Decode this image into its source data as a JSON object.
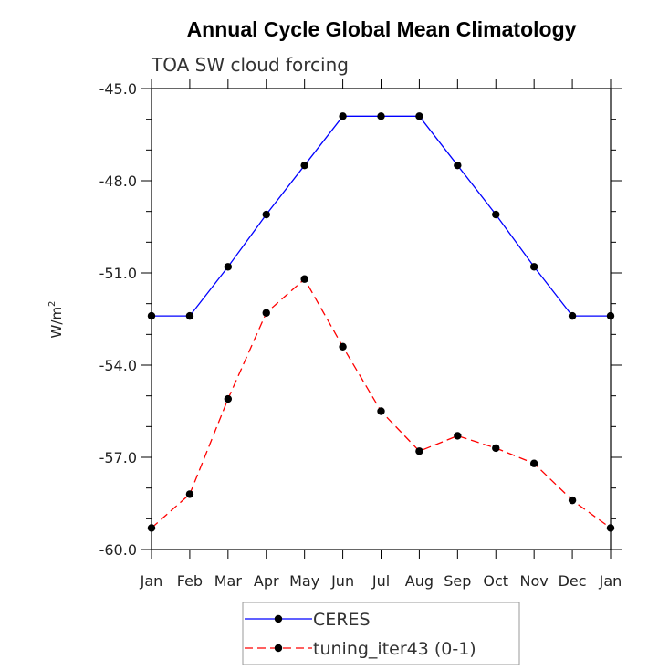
{
  "chart_data": {
    "type": "line",
    "title": "Annual Cycle Global Mean Climatology",
    "subtitle": "TOA SW cloud forcing",
    "ylabel": "W/m",
    "ylabel_sup": "2",
    "xlabel": "",
    "ylim": [
      -60.0,
      -45.0
    ],
    "yticks": [
      "-45.0",
      "-48.0",
      "-51.0",
      "-54.0",
      "-57.0",
      "-60.0"
    ],
    "ytick_values": [
      -45,
      -48,
      -51,
      -54,
      -57,
      -60
    ],
    "categories": [
      "Jan",
      "Feb",
      "Mar",
      "Apr",
      "May",
      "Jun",
      "Jul",
      "Aug",
      "Sep",
      "Oct",
      "Nov",
      "Dec",
      "Jan"
    ],
    "grid": false,
    "legend_position": "bottom-center",
    "series": [
      {
        "name": "CERES",
        "color": "#0000ff",
        "dash": "solid",
        "values": [
          -52.4,
          -52.4,
          -50.8,
          -49.1,
          -47.5,
          -45.9,
          -45.9,
          -45.9,
          -47.5,
          -49.1,
          -50.8,
          -52.4,
          -52.4
        ]
      },
      {
        "name": "tuning_iter43 (0-1)",
        "color": "#ff0000",
        "dash": "dashed",
        "values": [
          -59.3,
          -58.2,
          -55.1,
          -52.3,
          -51.2,
          -53.4,
          -55.5,
          -56.8,
          -56.3,
          -56.7,
          -57.2,
          -58.4,
          -59.3
        ]
      }
    ]
  }
}
